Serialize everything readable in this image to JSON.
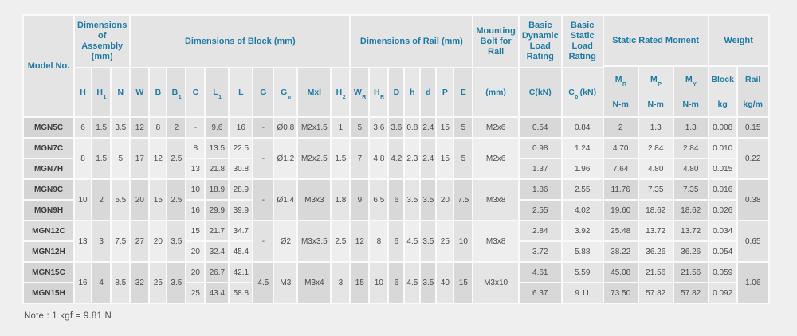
{
  "note": "Note : 1 kgf = 9.81 N",
  "colors": {
    "header_text": "#1f7ba5",
    "body_text": "#4b4b4b",
    "page_background": "#efefef",
    "separator": "#fafafa"
  },
  "table": {
    "group_headers": [
      {
        "label": "Model No.",
        "cs": 1,
        "rs": 3
      },
      {
        "label": "Dimensions of Assembly (mm)",
        "cs": 3,
        "rs": 2
      },
      {
        "label": "Dimensions of Block (mm)",
        "cs": 10,
        "rs": 2
      },
      {
        "label": "Dimensions of Rail (mm)",
        "cs": 7,
        "rs": 2
      },
      {
        "label": "Mounting Bolt for Rail",
        "cs": 1,
        "rs": 2
      },
      {
        "label": "Basic Dynamic Load Rating",
        "cs": 1,
        "rs": 2
      },
      {
        "label": "Basic Static Load Rating",
        "cs": 1,
        "rs": 2
      },
      {
        "label": "Static Rated Moment",
        "cs": 3,
        "rs": 1
      },
      {
        "label": "Weight",
        "cs": 2,
        "rs": 1
      }
    ],
    "sub_headers": [
      {
        "c": 1,
        "t": "H"
      },
      {
        "c": 2,
        "t": "H",
        "s": "1"
      },
      {
        "c": 3,
        "t": "N"
      },
      {
        "c": 4,
        "t": "W"
      },
      {
        "c": 5,
        "t": "B"
      },
      {
        "c": 6,
        "t": "B",
        "s": "1"
      },
      {
        "c": 7,
        "t": "C"
      },
      {
        "c": 8,
        "t": "L",
        "s": "1"
      },
      {
        "c": 9,
        "t": "L"
      },
      {
        "c": 10,
        "t": "G"
      },
      {
        "c": 11,
        "t": "G",
        "s": "n"
      },
      {
        "c": 12,
        "t": "Mxl"
      },
      {
        "c": 13,
        "t": "H",
        "s": "2"
      },
      {
        "c": 14,
        "t": "W",
        "s": "R"
      },
      {
        "c": 15,
        "t": "H",
        "s": "R"
      },
      {
        "c": 16,
        "t": "D"
      },
      {
        "c": 17,
        "t": "h"
      },
      {
        "c": 18,
        "t": "d"
      },
      {
        "c": 19,
        "t": "P"
      },
      {
        "c": 20,
        "t": "E"
      },
      {
        "c": 21,
        "t": "(mm)"
      },
      {
        "c": 22,
        "t": "C(kN)"
      },
      {
        "c": 23,
        "t": "C",
        "s": "0",
        "p": " (kN)"
      }
    ],
    "stacked_headers": [
      {
        "c": 24,
        "t": "M",
        "s": "R",
        "u": "N-m"
      },
      {
        "c": 25,
        "t": "M",
        "s": "P",
        "u": "N-m"
      },
      {
        "c": 26,
        "t": "M",
        "s": "Y",
        "u": "N-m"
      },
      {
        "c": 27,
        "t": "Block",
        "u": "kg"
      },
      {
        "c": 28,
        "t": "Rail",
        "u": "kg/m"
      }
    ],
    "groups": [
      {
        "rows": [
          [
            [
              0,
              "MGN5C",
              1
            ],
            [
              1,
              "6",
              1
            ],
            [
              2,
              "1.5",
              1
            ],
            [
              3,
              "3.5",
              1
            ],
            [
              4,
              "12",
              1
            ],
            [
              5,
              "8",
              1
            ],
            [
              6,
              "2",
              1
            ],
            [
              7,
              "-",
              1
            ],
            [
              8,
              "9.6",
              1
            ],
            [
              9,
              "16",
              1
            ],
            [
              10,
              "-",
              1
            ],
            [
              11,
              "Ø0.8",
              1
            ],
            [
              12,
              "M2x1.5",
              1
            ],
            [
              13,
              "1",
              1
            ],
            [
              14,
              "5",
              1
            ],
            [
              15,
              "3.6",
              1
            ],
            [
              16,
              "3.6",
              1
            ],
            [
              17,
              "0.8",
              1
            ],
            [
              18,
              "2.4",
              1
            ],
            [
              19,
              "15",
              1
            ],
            [
              20,
              "5",
              1
            ],
            [
              21,
              "M2x6",
              1
            ],
            [
              22,
              "0.54",
              1
            ],
            [
              23,
              "0.84",
              1
            ],
            [
              24,
              "2",
              1
            ],
            [
              25,
              "1.3",
              1
            ],
            [
              26,
              "1.3",
              1
            ],
            [
              27,
              "0.008",
              1
            ],
            [
              28,
              "0.15",
              1
            ]
          ]
        ]
      },
      {
        "rows": [
          [
            [
              0,
              "MGN7C",
              1
            ],
            [
              1,
              "8",
              2
            ],
            [
              2,
              "1.5",
              2
            ],
            [
              3,
              "5",
              2
            ],
            [
              4,
              "17",
              2
            ],
            [
              5,
              "12",
              2
            ],
            [
              6,
              "2.5",
              2
            ],
            [
              7,
              "8",
              1
            ],
            [
              8,
              "13.5",
              1
            ],
            [
              9,
              "22.5",
              1
            ],
            [
              10,
              "-",
              2
            ],
            [
              11,
              "Ø1.2",
              2
            ],
            [
              12,
              "M2x2.5",
              2
            ],
            [
              13,
              "1.5",
              2
            ],
            [
              14,
              "7",
              2
            ],
            [
              15,
              "4.8",
              2
            ],
            [
              16,
              "4.2",
              2
            ],
            [
              17,
              "2.3",
              2
            ],
            [
              18,
              "2.4",
              2
            ],
            [
              19,
              "15",
              2
            ],
            [
              20,
              "5",
              2
            ],
            [
              21,
              "M2x6",
              2
            ],
            [
              22,
              "0.98",
              1
            ],
            [
              23,
              "1.24",
              1
            ],
            [
              24,
              "4.70",
              1
            ],
            [
              25,
              "2.84",
              1
            ],
            [
              26,
              "2.84",
              1
            ],
            [
              27,
              "0.010",
              1
            ],
            [
              28,
              "0.22",
              2
            ]
          ],
          [
            [
              0,
              "MGN7H",
              1
            ],
            [
              7,
              "13",
              1
            ],
            [
              8,
              "21.8",
              1
            ],
            [
              9,
              "30.8",
              1
            ],
            [
              22,
              "1.37",
              1
            ],
            [
              23,
              "1.96",
              1
            ],
            [
              24,
              "7.64",
              1
            ],
            [
              25,
              "4.80",
              1
            ],
            [
              26,
              "4.80",
              1
            ],
            [
              27,
              "0.015",
              1
            ]
          ]
        ]
      },
      {
        "rows": [
          [
            [
              0,
              "MGN9C",
              1
            ],
            [
              1,
              "10",
              2
            ],
            [
              2,
              "2",
              2
            ],
            [
              3,
              "5.5",
              2
            ],
            [
              4,
              "20",
              2
            ],
            [
              5,
              "15",
              2
            ],
            [
              6,
              "2.5",
              2
            ],
            [
              7,
              "10",
              1
            ],
            [
              8,
              "18.9",
              1
            ],
            [
              9,
              "28.9",
              1
            ],
            [
              10,
              "-",
              2
            ],
            [
              11,
              "Ø1.4",
              2
            ],
            [
              12,
              "M3x3",
              2
            ],
            [
              13,
              "1.8",
              2
            ],
            [
              14,
              "9",
              2
            ],
            [
              15,
              "6.5",
              2
            ],
            [
              16,
              "6",
              2
            ],
            [
              17,
              "3.5",
              2
            ],
            [
              18,
              "3.5",
              2
            ],
            [
              19,
              "20",
              2
            ],
            [
              20,
              "7.5",
              2
            ],
            [
              21,
              "M3x8",
              2
            ],
            [
              22,
              "1.86",
              1
            ],
            [
              23,
              "2.55",
              1
            ],
            [
              24,
              "11.76",
              1
            ],
            [
              25,
              "7.35",
              1
            ],
            [
              26,
              "7.35",
              1
            ],
            [
              27,
              "0.016",
              1
            ],
            [
              28,
              "0.38",
              2
            ]
          ],
          [
            [
              0,
              "MGN9H",
              1
            ],
            [
              7,
              "16",
              1
            ],
            [
              8,
              "29.9",
              1
            ],
            [
              9,
              "39.9",
              1
            ],
            [
              22,
              "2.55",
              1
            ],
            [
              23,
              "4.02",
              1
            ],
            [
              24,
              "19.60",
              1
            ],
            [
              25,
              "18.62",
              1
            ],
            [
              26,
              "18.62",
              1
            ],
            [
              27,
              "0.026",
              1
            ]
          ]
        ]
      },
      {
        "rows": [
          [
            [
              0,
              "MGN12C",
              1
            ],
            [
              1,
              "13",
              2
            ],
            [
              2,
              "3",
              2
            ],
            [
              3,
              "7.5",
              2
            ],
            [
              4,
              "27",
              2
            ],
            [
              5,
              "20",
              2
            ],
            [
              6,
              "3.5",
              2
            ],
            [
              7,
              "15",
              1
            ],
            [
              8,
              "21.7",
              1
            ],
            [
              9,
              "34.7",
              1
            ],
            [
              10,
              "-",
              2
            ],
            [
              11,
              "Ø2",
              2
            ],
            [
              12,
              "M3x3.5",
              2
            ],
            [
              13,
              "2.5",
              2
            ],
            [
              14,
              "12",
              2
            ],
            [
              15,
              "8",
              2
            ],
            [
              16,
              "6",
              2
            ],
            [
              17,
              "4.5",
              2
            ],
            [
              18,
              "3.5",
              2
            ],
            [
              19,
              "25",
              2
            ],
            [
              20,
              "10",
              2
            ],
            [
              21,
              "M3x8",
              2
            ],
            [
              22,
              "2.84",
              1
            ],
            [
              23,
              "3.92",
              1
            ],
            [
              24,
              "25.48",
              1
            ],
            [
              25,
              "13.72",
              1
            ],
            [
              26,
              "13.72",
              1
            ],
            [
              27,
              "0.034",
              1
            ],
            [
              28,
              "0.65",
              2
            ]
          ],
          [
            [
              0,
              "MGN12H",
              1
            ],
            [
              7,
              "20",
              1
            ],
            [
              8,
              "32.4",
              1
            ],
            [
              9,
              "45.4",
              1
            ],
            [
              22,
              "3.72",
              1
            ],
            [
              23,
              "5.88",
              1
            ],
            [
              24,
              "38.22",
              1
            ],
            [
              25,
              "36.26",
              1
            ],
            [
              26,
              "36.26",
              1
            ],
            [
              27,
              "0.054",
              1
            ]
          ]
        ]
      },
      {
        "rows": [
          [
            [
              0,
              "MGN15C",
              1
            ],
            [
              1,
              "16",
              2
            ],
            [
              2,
              "4",
              2
            ],
            [
              3,
              "8.5",
              2
            ],
            [
              4,
              "32",
              2
            ],
            [
              5,
              "25",
              2
            ],
            [
              6,
              "3.5",
              2
            ],
            [
              7,
              "20",
              1
            ],
            [
              8,
              "26.7",
              1
            ],
            [
              9,
              "42.1",
              1
            ],
            [
              10,
              "4.5",
              2
            ],
            [
              11,
              "M3",
              2
            ],
            [
              12,
              "M3x4",
              2
            ],
            [
              13,
              "3",
              2
            ],
            [
              14,
              "15",
              2
            ],
            [
              15,
              "10",
              2
            ],
            [
              16,
              "6",
              2
            ],
            [
              17,
              "4.5",
              2
            ],
            [
              18,
              "3.5",
              2
            ],
            [
              19,
              "40",
              2
            ],
            [
              20,
              "15",
              2
            ],
            [
              21,
              "M3x10",
              2
            ],
            [
              22,
              "4.61",
              1
            ],
            [
              23,
              "5.59",
              1
            ],
            [
              24,
              "45.08",
              1
            ],
            [
              25,
              "21.56",
              1
            ],
            [
              26,
              "21.56",
              1
            ],
            [
              27,
              "0.059",
              1
            ],
            [
              28,
              "1.06",
              2
            ]
          ],
          [
            [
              0,
              "MGN15H",
              1
            ],
            [
              7,
              "25",
              1
            ],
            [
              8,
              "43.4",
              1
            ],
            [
              9,
              "58.8",
              1
            ],
            [
              22,
              "6.37",
              1
            ],
            [
              23,
              "9.11",
              1
            ],
            [
              24,
              "73.50",
              1
            ],
            [
              25,
              "57.82",
              1
            ],
            [
              26,
              "57.82",
              1
            ],
            [
              27,
              "0.092",
              1
            ]
          ]
        ]
      }
    ]
  }
}
